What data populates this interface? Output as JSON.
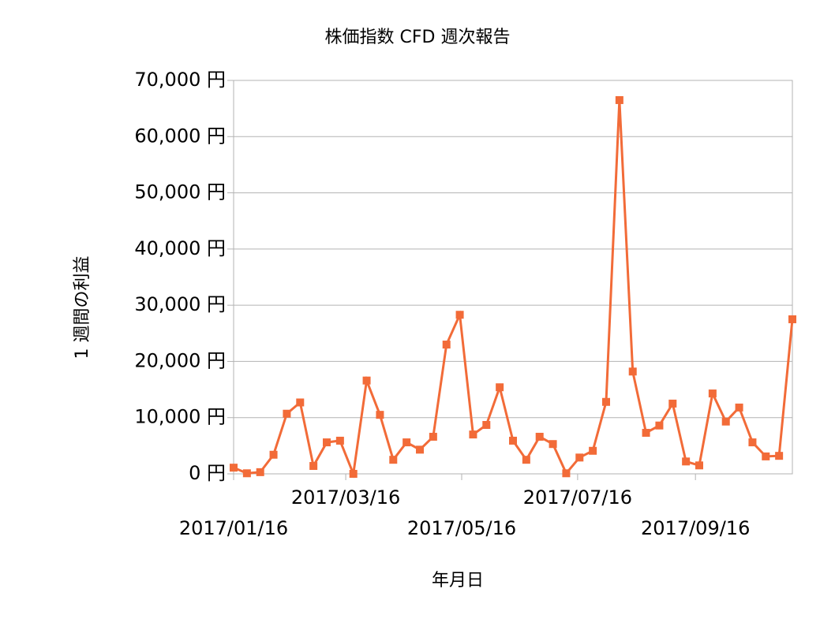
{
  "chart_data": {
    "type": "line",
    "title": "株価指数 CFD 週次報告",
    "xlabel": "年月日",
    "ylabel": "1 週間の利益",
    "x": [
      "2017/01/16",
      "2017/01/23",
      "2017/01/30",
      "2017/02/06",
      "2017/02/13",
      "2017/02/20",
      "2017/02/27",
      "2017/03/06",
      "2017/03/13",
      "2017/03/20",
      "2017/03/27",
      "2017/04/03",
      "2017/04/10",
      "2017/04/17",
      "2017/04/24",
      "2017/05/01",
      "2017/05/08",
      "2017/05/15",
      "2017/05/22",
      "2017/05/29",
      "2017/06/05",
      "2017/06/12",
      "2017/06/19",
      "2017/06/26",
      "2017/07/03",
      "2017/07/10",
      "2017/07/17",
      "2017/07/24",
      "2017/07/31",
      "2017/08/07",
      "2017/08/14",
      "2017/08/21",
      "2017/08/28",
      "2017/09/04",
      "2017/09/11",
      "2017/09/18",
      "2017/09/25",
      "2017/10/02",
      "2017/10/09",
      "2017/10/16",
      "2017/10/23",
      "2017/10/30",
      "2017/11/06"
    ],
    "series": [
      {
        "name": "1 週間の利益",
        "color": "#f26b38",
        "values": [
          1100,
          100,
          300,
          3400,
          10700,
          12700,
          1400,
          5600,
          5900,
          0,
          16600,
          10500,
          2500,
          5600,
          4300,
          6600,
          23000,
          28300,
          7000,
          8700,
          15400,
          5900,
          2500,
          6600,
          5300,
          100,
          2900,
          4100,
          12800,
          66500,
          18200,
          7300,
          8600,
          12500,
          2200,
          1500,
          14300,
          9300,
          11800,
          5600,
          3100,
          3200,
          27500
        ]
      }
    ],
    "xlim": [
      "2017/01/16",
      "2017/11/06"
    ],
    "xticks": [
      "2017/01/16",
      "2017/03/16",
      "2017/05/16",
      "2017/07/16",
      "2017/09/16"
    ],
    "ylim": [
      0,
      70000
    ],
    "yticks": [
      {
        "value": 0,
        "label": "0 円"
      },
      {
        "value": 10000,
        "label": "10,000 円"
      },
      {
        "value": 20000,
        "label": "20,000 円"
      },
      {
        "value": 30000,
        "label": "30,000 円"
      },
      {
        "value": 40000,
        "label": "40,000 円"
      },
      {
        "value": 50000,
        "label": "50,000 円"
      },
      {
        "value": 60000,
        "label": "60,000 円"
      },
      {
        "value": 70000,
        "label": "70,000 円"
      }
    ],
    "grid": true
  }
}
